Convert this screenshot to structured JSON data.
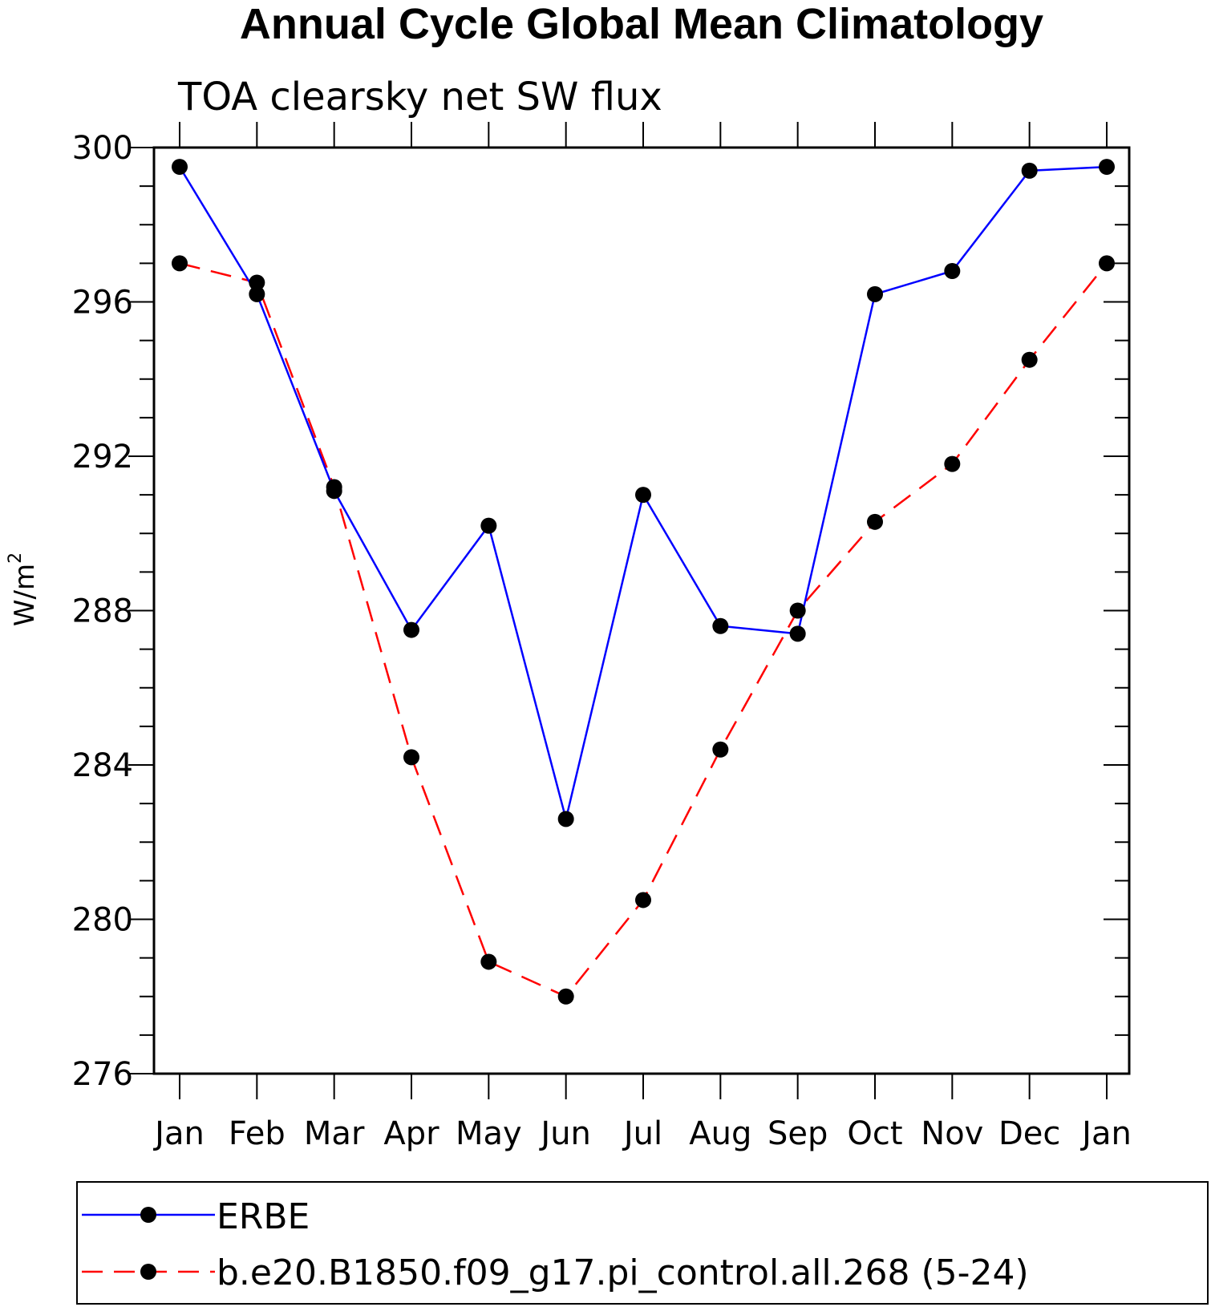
{
  "chart_data": {
    "type": "line",
    "title": "Annual Cycle Global Mean Climatology",
    "subtitle": "TOA clearsky net SW flux",
    "ylabel_base": "W/m",
    "ylabel_sup": "2",
    "categories": [
      "Jan",
      "Feb",
      "Mar",
      "Apr",
      "May",
      "Jun",
      "Jul",
      "Aug",
      "Sep",
      "Oct",
      "Nov",
      "Dec",
      "Jan"
    ],
    "ylim": [
      276,
      300
    ],
    "yticks": [
      "276",
      "280",
      "284",
      "288",
      "292",
      "296",
      "300"
    ],
    "series": [
      {
        "name": "ERBE",
        "color": "#0000ff",
        "dash": "solid",
        "marker": "filled-circle",
        "values": [
          299.5,
          296.2,
          291.1,
          287.5,
          290.2,
          282.6,
          291.0,
          287.6,
          287.4,
          296.2,
          296.8,
          299.4,
          299.5
        ]
      },
      {
        "name": "b.e20.B1850.f09_g17.pi_control.all.268 (5-24)",
        "color": "#ff0000",
        "dash": "dashed",
        "marker": "filled-circle",
        "values": [
          297.0,
          296.5,
          291.2,
          284.2,
          278.9,
          278.0,
          280.5,
          284.4,
          288.0,
          290.3,
          291.8,
          294.5,
          297.0
        ]
      }
    ],
    "grid": false,
    "legend_position": "bottom"
  }
}
